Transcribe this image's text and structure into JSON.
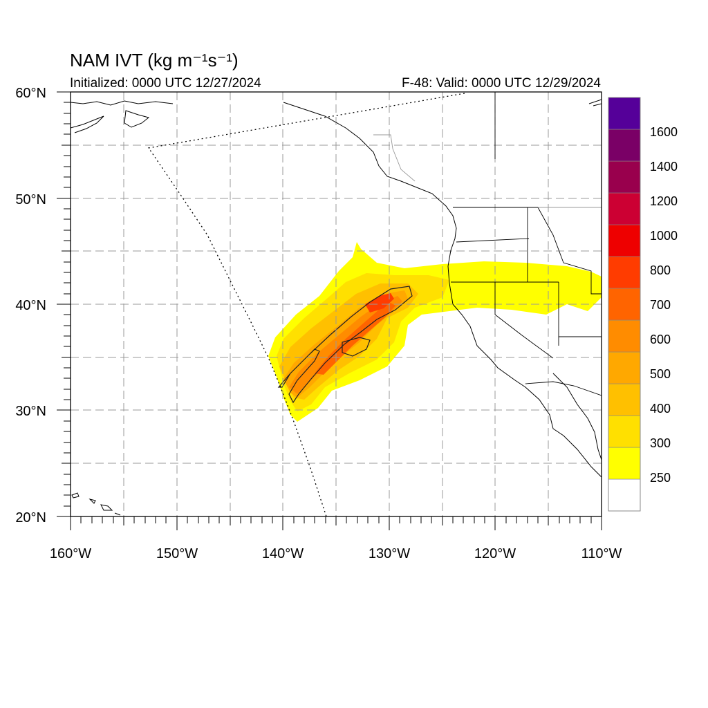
{
  "map": {
    "title": "NAM IVT (kg m⁻¹s⁻¹)",
    "initialized": "Initialized: 0000 UTC 12/27/2024",
    "valid": "F-48: Valid: 0000 UTC 12/29/2024",
    "lon_range": [
      -160,
      -110
    ],
    "lat_range": [
      20,
      60
    ],
    "grid": "dashed 5-degree graticule",
    "lon_ticks": [
      "160°W",
      "150°W",
      "140°W",
      "130°W",
      "120°W",
      "110°W"
    ],
    "lat_ticks": [
      "20°N",
      "30°N",
      "40°N",
      "50°N",
      "60°N"
    ]
  },
  "colorbar": {
    "labels": [
      "250",
      "300",
      "400",
      "500",
      "600",
      "700",
      "800",
      "1000",
      "1200",
      "1400",
      "1600"
    ],
    "colors": [
      "#ffffff",
      "#ffff00",
      "#ffe000",
      "#ffc000",
      "#ffa800",
      "#ff8c00",
      "#ff6400",
      "#ff3c00",
      "#ee0000",
      "#cc0033",
      "#99004d",
      "#7a0066",
      "#550099"
    ]
  }
}
